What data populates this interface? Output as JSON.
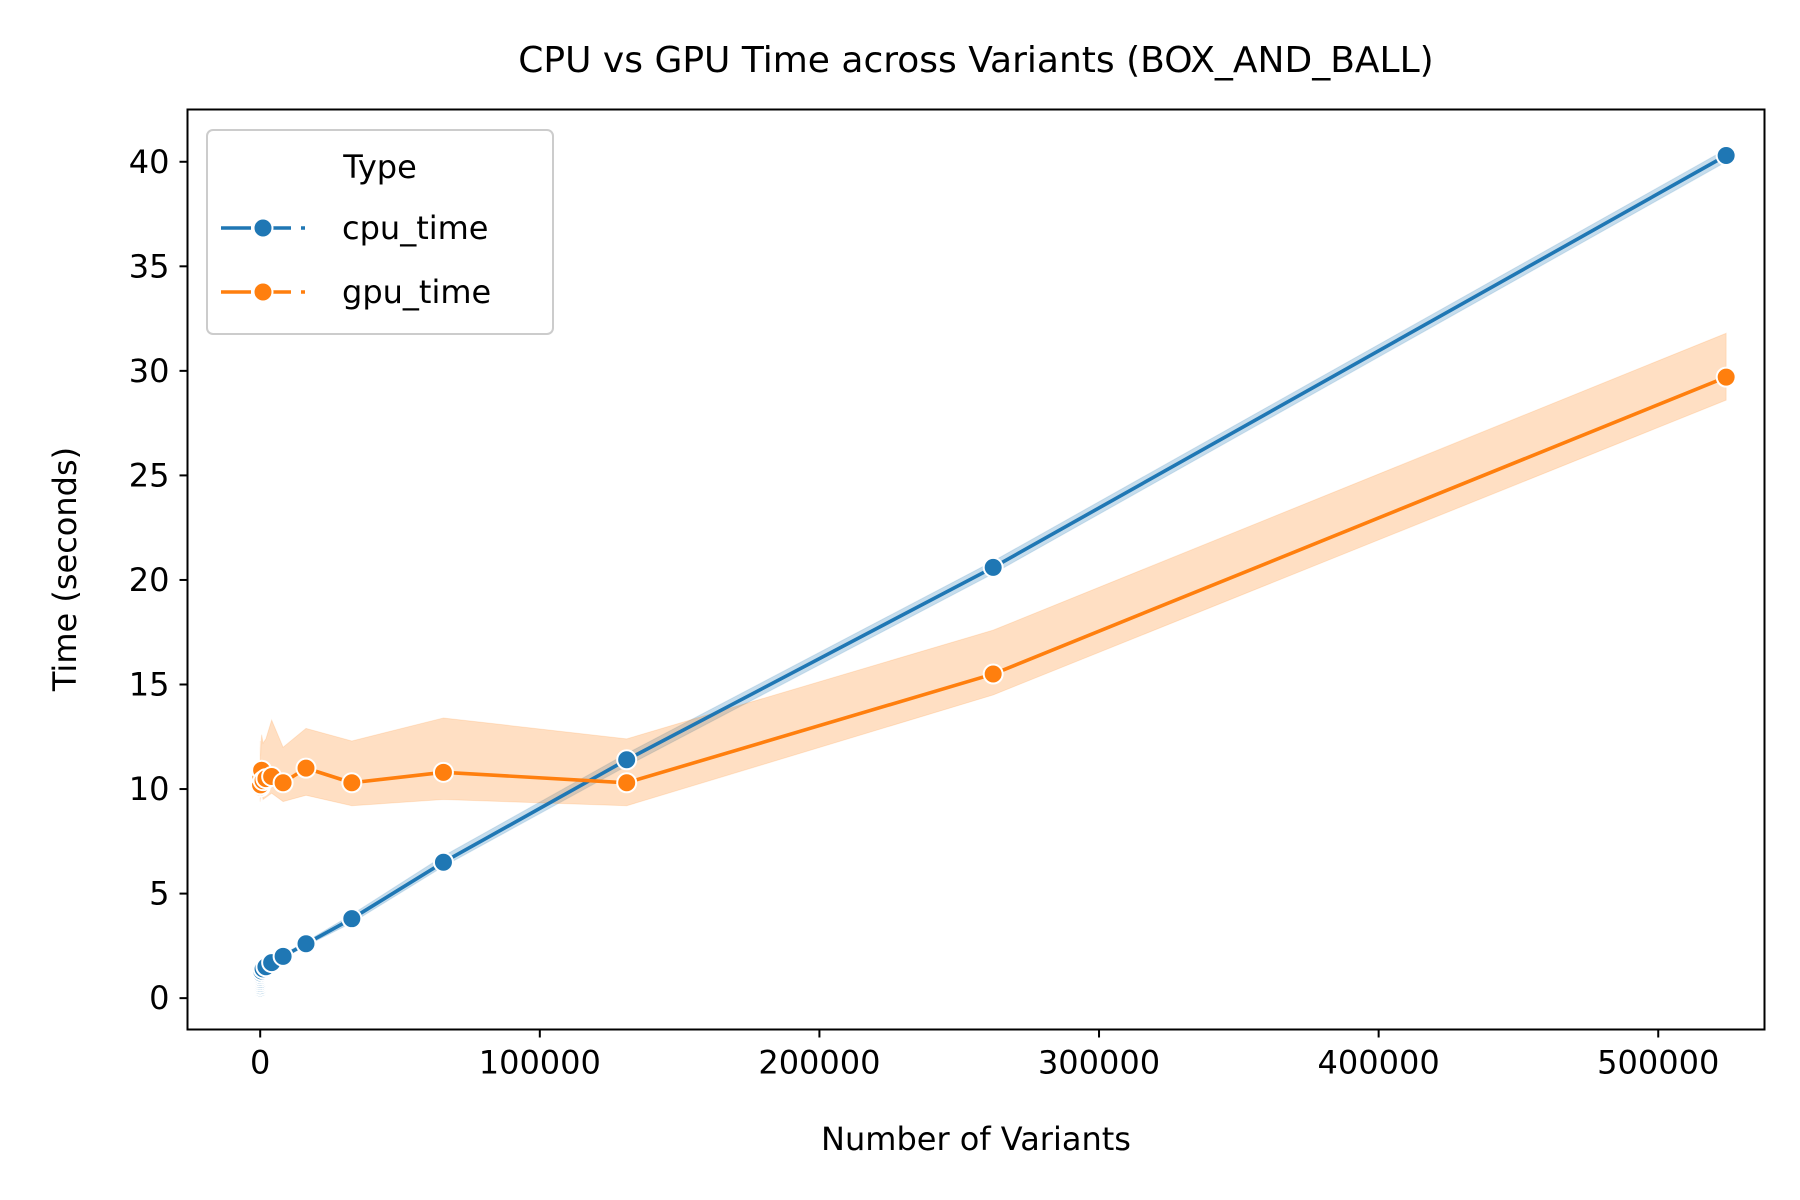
{
  "chart_data": {
    "type": "line",
    "title": "CPU vs GPU Time across Variants (BOX_AND_BALL)",
    "xlabel": "Number of Variants",
    "ylabel": "Time (seconds)",
    "xlim": [
      -26000,
      538000
    ],
    "ylim": [
      -1.5,
      42.5
    ],
    "xticks": [
      0,
      100000,
      200000,
      300000,
      400000,
      500000
    ],
    "xtick_labels": [
      "0",
      "100000",
      "200000",
      "300000",
      "400000",
      "500000"
    ],
    "yticks": [
      0,
      5,
      10,
      15,
      20,
      25,
      30,
      35,
      40
    ],
    "ytick_labels": [
      "0",
      "5",
      "10",
      "15",
      "20",
      "25",
      "30",
      "35",
      "40"
    ],
    "grid": false,
    "legend": {
      "title": "Type",
      "placement": "top-left"
    },
    "series": [
      {
        "name": "cpu_time",
        "color": "#1f77b4",
        "x": [
          1,
          2,
          4,
          8,
          16,
          32,
          64,
          128,
          256,
          512,
          1024,
          2048,
          4096,
          8192,
          16384,
          32768,
          65536,
          131072,
          262144,
          524288
        ],
        "y": [
          0.5,
          0.6,
          0.6,
          0.7,
          0.8,
          0.9,
          1.0,
          1.1,
          1.2,
          1.3,
          1.4,
          1.5,
          1.7,
          2.0,
          2.6,
          3.8,
          6.5,
          11.4,
          20.6,
          40.3
        ],
        "ci_lower": [
          0.4,
          0.5,
          0.5,
          0.6,
          0.7,
          0.8,
          0.9,
          1.0,
          1.1,
          1.2,
          1.3,
          1.4,
          1.6,
          1.9,
          2.5,
          3.6,
          6.3,
          11.1,
          20.3,
          40.0
        ],
        "ci_upper": [
          0.6,
          0.7,
          0.7,
          0.8,
          0.9,
          1.0,
          1.1,
          1.2,
          1.3,
          1.4,
          1.5,
          1.6,
          1.8,
          2.1,
          2.7,
          4.0,
          6.8,
          11.7,
          20.9,
          40.6
        ]
      },
      {
        "name": "gpu_time",
        "color": "#ff7f0e",
        "x": [
          1,
          2,
          4,
          8,
          16,
          32,
          64,
          128,
          256,
          512,
          1024,
          2048,
          4096,
          8192,
          16384,
          32768,
          65536,
          131072,
          262144,
          524288
        ],
        "y": [
          10.1,
          10.4,
          10.2,
          10.7,
          10.3,
          10.5,
          10.8,
          10.2,
          10.6,
          10.9,
          10.4,
          10.5,
          10.6,
          10.3,
          11.0,
          10.3,
          10.8,
          10.3,
          15.5,
          29.7
        ],
        "ci_lower": [
          9.4,
          9.6,
          9.5,
          9.8,
          9.6,
          9.7,
          9.8,
          9.5,
          9.7,
          9.9,
          9.5,
          9.6,
          9.8,
          9.4,
          9.7,
          9.2,
          9.5,
          9.2,
          14.5,
          28.6
        ],
        "ci_upper": [
          10.9,
          11.4,
          11.2,
          12.0,
          11.5,
          11.9,
          12.3,
          11.6,
          12.1,
          12.6,
          12.2,
          12.4,
          13.3,
          12.0,
          12.9,
          12.3,
          13.4,
          12.4,
          17.6,
          31.8
        ]
      }
    ]
  }
}
